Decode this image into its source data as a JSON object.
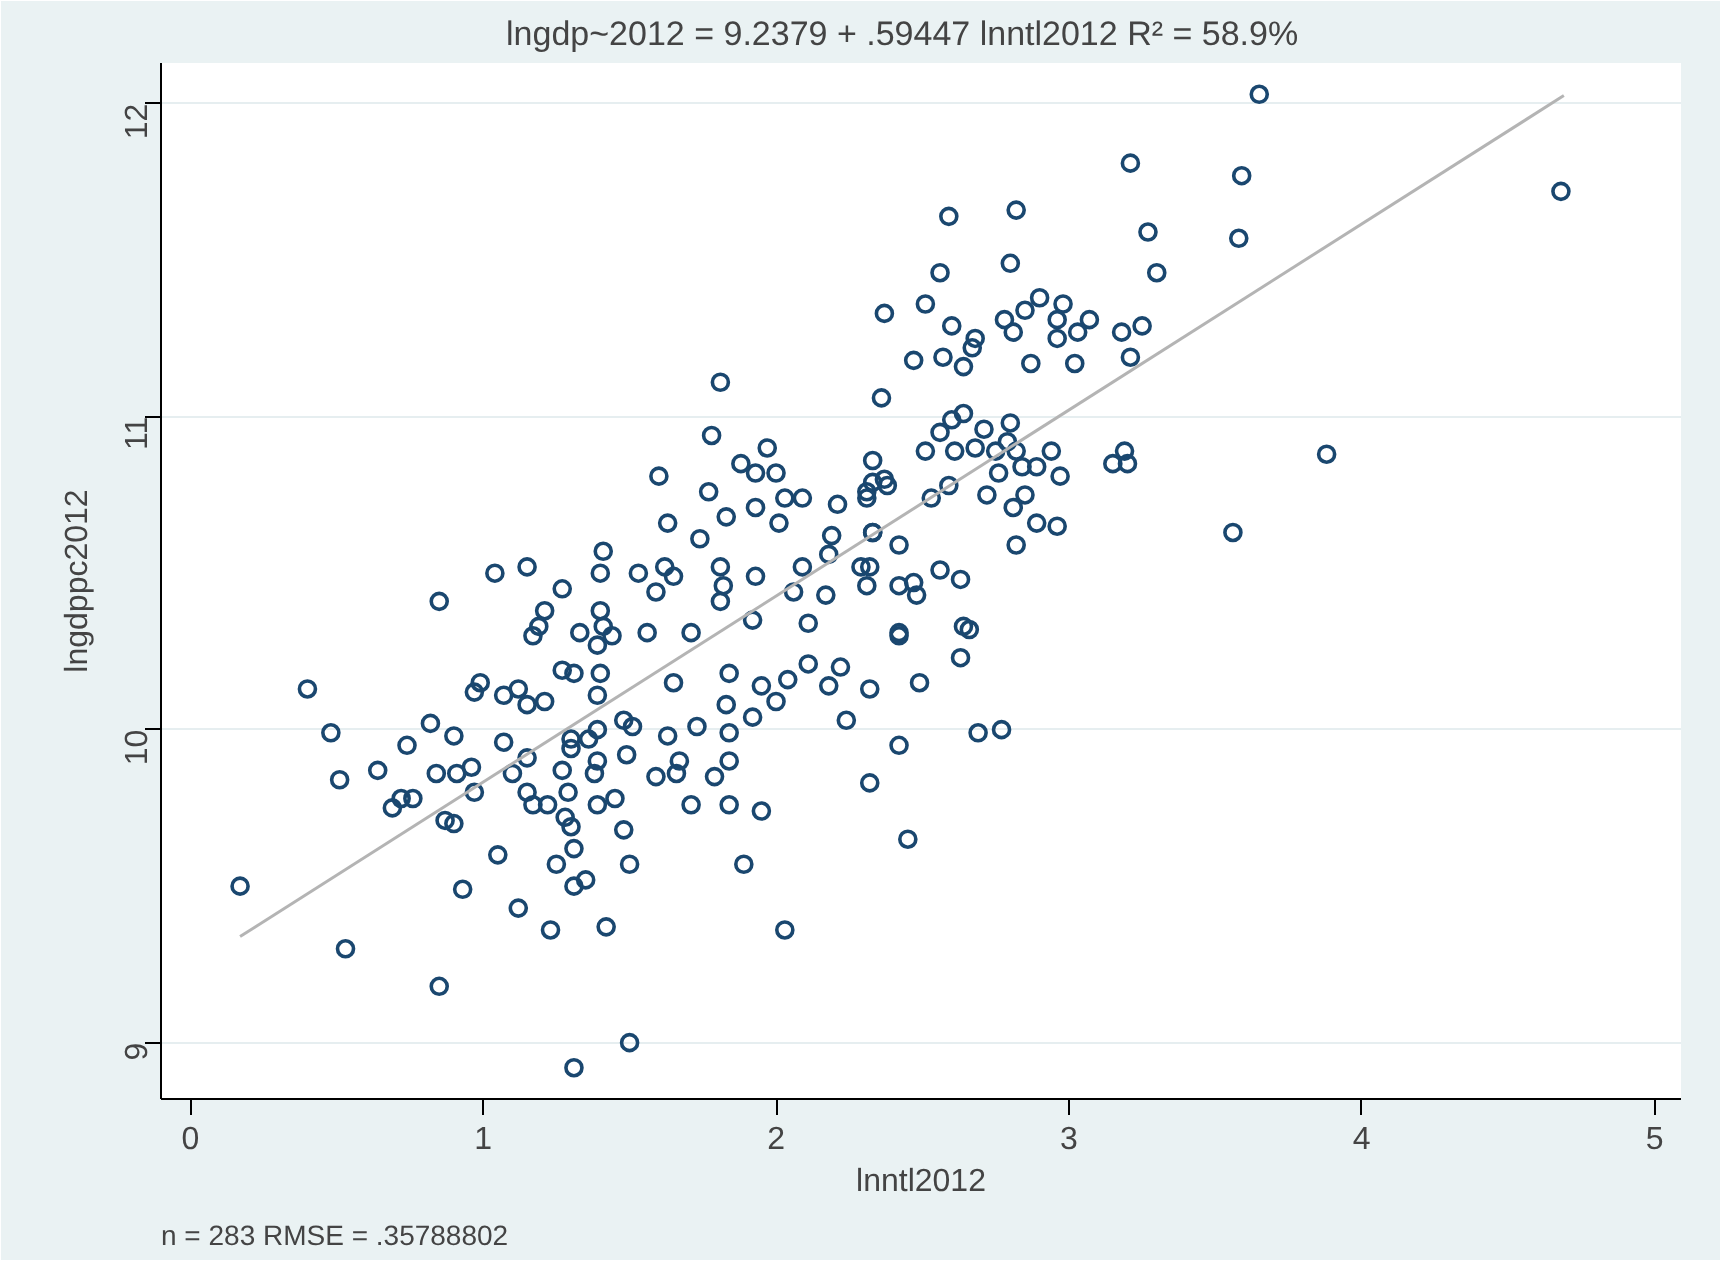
{
  "chart_data": {
    "type": "scatter",
    "title": "lngdp~2012 = 9.2379 + .59447 lnntl2012     R² = 58.9%",
    "xlabel": "lnntl2012",
    "ylabel": "lngdppc2012",
    "annotations": [
      "n = 283    RMSE =  .35788802"
    ],
    "xlim": [
      -0.1,
      5.09
    ],
    "ylim": [
      8.82,
      12.13
    ],
    "xticks": [
      0,
      1,
      2,
      3,
      4,
      5
    ],
    "yticks": [
      9,
      10,
      11,
      12
    ],
    "grid": "y",
    "series": [
      {
        "marker": "circle",
        "color": "#1a476f",
        "x": [
          0.17,
          0.4,
          0.48,
          0.51,
          0.53,
          0.64,
          0.69,
          0.72,
          0.76,
          0.74,
          0.82,
          0.84,
          0.85,
          0.87,
          0.9,
          0.9,
          0.91,
          0.96,
          0.97,
          0.93,
          0.97,
          0.99,
          1.05,
          1.07,
          1.07,
          1.1,
          1.12,
          1.12,
          1.15,
          1.15,
          1.15,
          1.17,
          1.17,
          1.21,
          1.21,
          1.22,
          1.23,
          1.25,
          1.27,
          1.27,
          1.28,
          1.29,
          1.3,
          1.31,
          1.31,
          1.35,
          1.31,
          1.31,
          1.3,
          1.3,
          1.33,
          1.36,
          1.38,
          1.39,
          1.39,
          1.39,
          1.39,
          1.4,
          1.4,
          1.39,
          1.42,
          1.44,
          1.45,
          1.48,
          1.48,
          1.49,
          1.5,
          1.5,
          1.51,
          1.56,
          1.59,
          1.63,
          1.66,
          1.67,
          1.65,
          1.71,
          1.71,
          1.73,
          1.79,
          1.81,
          1.83,
          1.84,
          1.84,
          1.84,
          1.84,
          1.89,
          1.92,
          1.95,
          1.95,
          2.0,
          2.03,
          2.04,
          2.11,
          2.18,
          2.24,
          2.32,
          2.32,
          2.22,
          2.42,
          2.45,
          2.69,
          2.77,
          2.49,
          2.63,
          2.66,
          2.42,
          2.37,
          1.81,
          2.36,
          1.78,
          1.97,
          1.88,
          1.93,
          1.6,
          2.33,
          2.0,
          1.77,
          2.03,
          2.09,
          2.21,
          2.31,
          2.37,
          1.63,
          1.74,
          1.93,
          1.83,
          2.01,
          2.19,
          2.33,
          1.41,
          1.04,
          1.15,
          1.27,
          1.4,
          1.53,
          1.59,
          1.62,
          1.65,
          1.81,
          2.09,
          1.93,
          2.18,
          2.29,
          2.06,
          2.17,
          2.11,
          1.92,
          1.19,
          1.41,
          0.85,
          1.82,
          3.65,
          3.21,
          3.59,
          4.68,
          3.58,
          2.59,
          2.82,
          3.27,
          3.3,
          2.56,
          2.8,
          2.51,
          2.9,
          2.98,
          2.6,
          2.78,
          2.85,
          2.96,
          3.07,
          2.81,
          2.96,
          3.03,
          3.18,
          3.25,
          2.68,
          2.67,
          2.47,
          2.57,
          2.64,
          2.87,
          3.02,
          3.21,
          2.64,
          2.6,
          2.71,
          2.8,
          2.56,
          2.51,
          2.61,
          2.68,
          2.75,
          2.82,
          2.94,
          2.79,
          3.19,
          3.15,
          3.2,
          3.88,
          2.76,
          2.84,
          2.89,
          2.97,
          2.33,
          2.38,
          2.59,
          2.53,
          2.31,
          2.72,
          2.85,
          2.81,
          2.89,
          2.96,
          2.82,
          3.56,
          2.33,
          2.42,
          2.32,
          2.56,
          2.63,
          2.47,
          2.42,
          2.48,
          2.31,
          2.42,
          2.64
        ],
        "values": [
          9.5,
          10.13,
          9.99,
          9.84,
          9.3,
          9.87,
          9.75,
          9.78,
          9.78,
          9.95,
          10.02,
          9.86,
          9.18,
          9.71,
          9.7,
          9.98,
          9.86,
          9.88,
          9.8,
          9.49,
          10.12,
          10.15,
          9.6,
          9.96,
          10.11,
          9.86,
          10.13,
          9.43,
          9.91,
          10.08,
          9.8,
          9.76,
          10.3,
          10.38,
          10.09,
          9.76,
          9.36,
          9.57,
          10.19,
          9.87,
          9.72,
          9.8,
          9.69,
          9.62,
          9.5,
          9.52,
          8.92,
          10.18,
          9.97,
          9.94,
          10.31,
          9.97,
          9.86,
          10.0,
          9.9,
          9.76,
          10.11,
          10.18,
          10.38,
          10.27,
          9.37,
          10.3,
          9.78,
          10.03,
          9.68,
          9.92,
          9.57,
          9.0,
          10.01,
          10.31,
          9.85,
          9.98,
          9.86,
          9.9,
          10.15,
          10.31,
          9.76,
          10.01,
          9.85,
          10.41,
          10.08,
          9.99,
          9.9,
          9.76,
          10.18,
          9.57,
          10.04,
          9.74,
          10.14,
          10.09,
          9.36,
          10.16,
          10.21,
          10.14,
          10.03,
          9.83,
          10.13,
          10.2,
          9.95,
          9.65,
          9.99,
          10.0,
          10.15,
          10.23,
          10.32,
          10.3,
          11.33,
          11.11,
          11.06,
          10.94,
          10.9,
          10.85,
          10.82,
          10.81,
          10.86,
          10.82,
          10.76,
          10.74,
          10.74,
          10.72,
          10.76,
          10.8,
          10.66,
          10.61,
          10.71,
          10.68,
          10.66,
          10.62,
          10.63,
          10.57,
          10.5,
          10.52,
          10.45,
          10.5,
          10.5,
          10.44,
          10.52,
          10.49,
          10.52,
          10.52,
          10.49,
          10.56,
          10.52,
          10.44,
          10.43,
          10.34,
          10.35,
          10.33,
          10.33,
          10.41,
          10.46,
          12.03,
          11.81,
          11.77,
          11.72,
          11.57,
          11.64,
          11.66,
          11.59,
          11.46,
          11.46,
          11.49,
          11.36,
          11.38,
          11.36,
          11.29,
          11.31,
          11.34,
          11.31,
          11.31,
          11.27,
          11.25,
          11.27,
          11.27,
          11.29,
          11.25,
          11.22,
          11.18,
          11.19,
          11.16,
          11.17,
          11.17,
          11.19,
          11.01,
          10.99,
          10.96,
          10.98,
          10.95,
          10.89,
          10.89,
          10.9,
          10.89,
          10.89,
          10.89,
          10.92,
          10.89,
          10.85,
          10.85,
          10.88,
          10.82,
          10.84,
          10.84,
          10.81,
          10.79,
          10.78,
          10.78,
          10.74,
          10.74,
          10.75,
          10.75,
          10.71,
          10.66,
          10.65,
          10.59,
          10.63,
          10.63,
          10.59,
          10.52,
          10.51,
          10.48,
          10.47,
          10.46,
          10.43,
          10.46,
          10.31,
          10.33
        ]
      },
      {
        "type": "line",
        "marker": "none",
        "color": "#b4b4b4",
        "x": [
          0.17,
          4.69
        ],
        "values": [
          9.339,
          12.026
        ]
      }
    ]
  }
}
